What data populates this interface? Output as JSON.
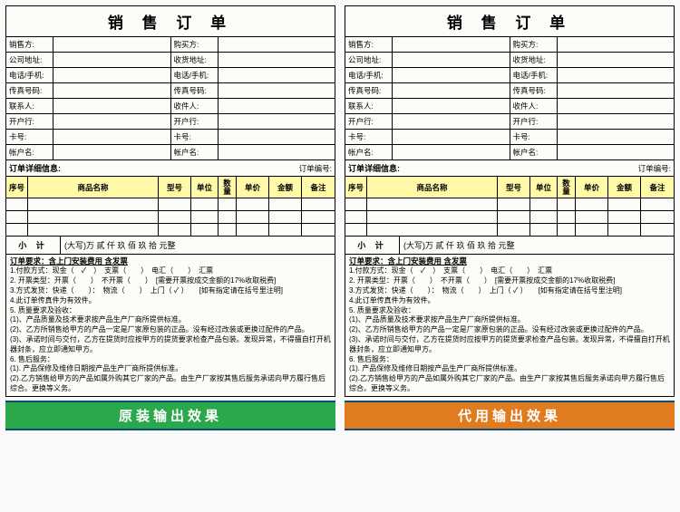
{
  "title": "销 售 订 单",
  "seller_label": "销售方:",
  "buyer_label": "购买方:",
  "addr1_label": "公司地址:",
  "addr2_label": "收货地址:",
  "tel_label": "电话/手机:",
  "fax_label": "传真号码:",
  "contact_label": "联系人:",
  "recv_label": "收件人:",
  "bank_label": "开户行:",
  "card_label": "卡号:",
  "acct_label": "帐户名:",
  "detail_title": "订单详细信息:",
  "order_no_label": "订单编号:",
  "cols": {
    "no": "序号",
    "name": "商品名称",
    "model": "型号",
    "unit": "单位",
    "qty": "数\n量",
    "price": "单价",
    "amt": "金额",
    "note": "备注"
  },
  "subtotal_label": "小 计",
  "subtotal_text": "(大写)万 貳 仟 玖 佰 玖 拾 元整",
  "terms_title": "订单要求：含上门安装费用 含发票",
  "terms": [
    "1.付款方式：现金（　✓　）　支票（　　）　电汇（　　）　汇票",
    "2. 开票类型：开票（　　）　不开票（　　）　[需要开票按成交金额的17%收取税费]",
    "3.方式发货：快递（　　）：　物流（　　）　上门（ ✓ ）　　[如有指定请在括号里注明]",
    "4.此订单传真件为有效件。",
    "5. 质量要求及验收：",
    "(1)、产品质量及技术要求按产品生产厂商所提供标准。",
    "(2)、乙方所销售给甲方的产品一定是厂家原包装的正品。没有经过改装或更换过配件的产品。",
    "(3)、承诺时间与交付，乙方在提货时应按甲方的提货要求检查产品包装。发现异常，不得擅自打开机器封条，应立即通知甲方。",
    "6.  售后服务：",
    "(1). 产品保修及维修日期按产品生产厂商所提供标准。",
    "(2).乙方销售给甲方的产品如属外购其它厂家的产品。由生产厂家按其售后服务承诺向甲方履行售后综合。更换等义务。"
  ],
  "footer1": "原装输出效果",
  "footer2": "代用输出效果"
}
